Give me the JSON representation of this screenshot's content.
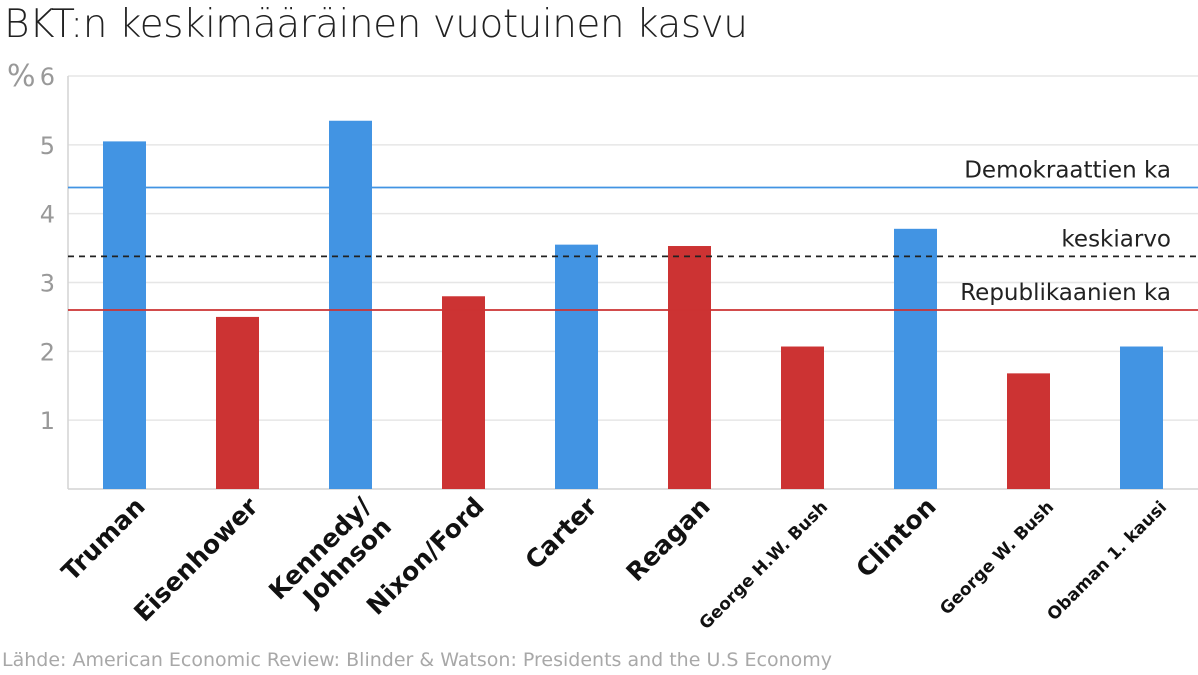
{
  "title": "BKT:n keskimääräinen vuotuinen kasvu",
  "source": "Lähde: American Economic Review: Blinder & Watson: Presidents and the U.S Economy",
  "colors": {
    "democrat": "#4294e3",
    "republican": "#cc3333",
    "grid": "#e6e6e6",
    "axis_text": "#999999",
    "average": "#222222"
  },
  "chart_data": {
    "type": "bar",
    "title": "BKT:n keskimääräinen vuotuinen kasvu",
    "ylabel": "%",
    "ylim": [
      0,
      6
    ],
    "yticks": [
      1,
      2,
      3,
      4,
      5,
      6
    ],
    "grid": true,
    "categories": [
      [
        "Truman"
      ],
      [
        "Eisenhower"
      ],
      [
        "Kennedy/",
        "Johnson"
      ],
      [
        "Nixon/Ford"
      ],
      [
        "Carter"
      ],
      [
        "Reagan"
      ],
      [
        "George H.W. Bush"
      ],
      [
        "Clinton"
      ],
      [
        "George W. Bush"
      ],
      [
        "Obaman 1. kausi"
      ]
    ],
    "values": [
      5.05,
      2.5,
      5.35,
      2.8,
      3.55,
      3.53,
      2.07,
      3.78,
      1.68,
      2.07
    ],
    "party": [
      "democrat",
      "republican",
      "democrat",
      "republican",
      "democrat",
      "republican",
      "republican",
      "democrat",
      "republican",
      "democrat"
    ],
    "reference_lines": [
      {
        "label": "Demokraattien ka",
        "value": 4.38,
        "style": "solid",
        "color": "#4294e3"
      },
      {
        "label": "keskiarvo",
        "value": 3.38,
        "style": "dashed",
        "color": "#222222"
      },
      {
        "label": "Republikaanien ka",
        "value": 2.6,
        "style": "solid",
        "color": "#cc3333"
      }
    ]
  }
}
